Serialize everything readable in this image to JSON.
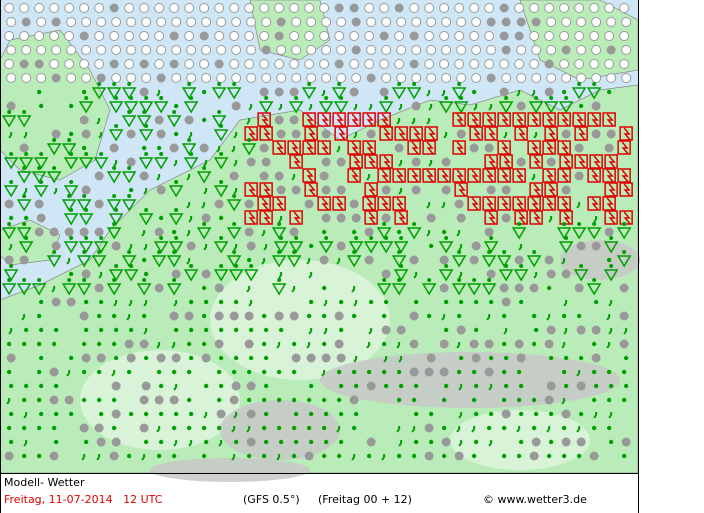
{
  "footer": {
    "model": "Modell- Wetter",
    "date": "Freitag, 11-07-2014   12 UTC",
    "run": "(GFS 0.5°)",
    "range": "(Freitag 00 + 12)",
    "copyright": "© www.wetter3.de"
  }
}
